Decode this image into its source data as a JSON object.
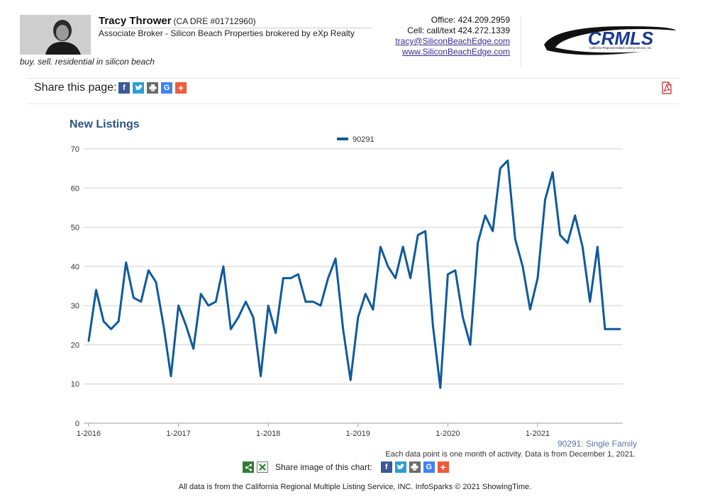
{
  "agent": {
    "name": "Tracy Thrower",
    "dre": "(CA DRE #01712960)",
    "title": "Associate Broker - Silicon Beach Properties brokered by eXp Realty",
    "tagline": "buy. sell. residential in silicon beach"
  },
  "contact": {
    "office": "Office: 424.209.2959",
    "cell": "Cell: call/text 424.272.1339",
    "email": "tracy@SiliconBeachEdge.com",
    "website": "www.SiliconBeachEdge.com"
  },
  "logo": {
    "text": "CRMLS",
    "subtext": "California Regional Multiple Listing Service, Inc."
  },
  "share": {
    "label": "Share this page:",
    "icons": [
      "facebook-icon",
      "twitter-icon",
      "print-icon",
      "google-icon",
      "plus-icon"
    ],
    "pdf_icon": "pdf-icon"
  },
  "chart_data": {
    "type": "line",
    "title": "New Listings",
    "xlabel": "",
    "ylabel": "",
    "ylim": [
      0,
      70
    ],
    "yticks": [
      0,
      10,
      20,
      30,
      40,
      50,
      60,
      70
    ],
    "xtick_labels": [
      "1-2016",
      "1-2017",
      "1-2018",
      "1-2019",
      "1-2020",
      "1-2021"
    ],
    "x_start": "2016-01",
    "x_end": "2021-12",
    "grid": true,
    "legend_position": "top-center",
    "series": [
      {
        "name": "90291",
        "color": "#0e5a9c",
        "values": [
          21,
          34,
          26,
          24,
          26,
          41,
          32,
          31,
          39,
          36,
          25,
          12,
          30,
          25,
          19,
          33,
          30,
          31,
          40,
          24,
          27,
          31,
          27,
          12,
          30,
          23,
          37,
          37,
          38,
          31,
          31,
          30,
          37,
          42,
          24,
          11,
          27,
          33,
          29,
          45,
          40,
          37,
          45,
          37,
          48,
          49,
          25,
          9,
          38,
          39,
          27,
          20,
          46,
          53,
          49,
          65,
          67,
          47,
          40,
          29,
          37,
          57,
          64,
          48,
          46,
          53,
          45,
          31,
          45,
          24,
          24,
          24
        ]
      }
    ]
  },
  "notes": {
    "series_note": "90291: Single Family",
    "data_note": "Each data point is one month of activity. Data is from December 1, 2021."
  },
  "share_image": {
    "label": "Share image of this chart:"
  },
  "footer": "All data is from the California Regional Multiple Listing Service, INC. InfoSparks © 2021 ShowingTime."
}
